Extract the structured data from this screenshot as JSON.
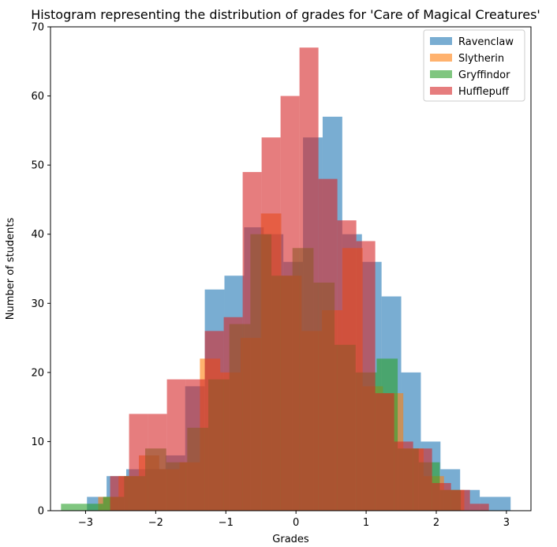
{
  "chart_data": {
    "type": "bar",
    "title": "Histogram representing the distribution of grades for 'Care of Magical Creatures'",
    "xlabel": "Grades",
    "ylabel": "Number of students",
    "xlim": [
      -3.5,
      3.35
    ],
    "ylim": [
      0,
      70
    ],
    "xticks": [
      -3,
      -2,
      -1,
      0,
      1,
      2,
      3
    ],
    "xtick_labels": [
      "−3",
      "−2",
      "−1",
      "0",
      "1",
      "2",
      "3"
    ],
    "yticks": [
      0,
      10,
      20,
      30,
      40,
      50,
      60,
      70
    ],
    "ytick_labels": [
      "0",
      "10",
      "20",
      "30",
      "40",
      "50",
      "60",
      "70"
    ],
    "grid": false,
    "legend_position": "top-right",
    "series": [
      {
        "name": "Ravenclaw",
        "color": "#1f77b4",
        "opacity": 0.6,
        "bin_edges": [
          -2.98,
          -2.7,
          -2.42,
          -2.14,
          -1.86,
          -1.58,
          -1.3,
          -1.02,
          -0.74,
          -0.46,
          -0.18,
          0.1,
          0.38,
          0.66,
          0.94,
          1.22,
          1.5,
          1.78,
          2.06,
          2.34,
          2.62,
          3.06
        ],
        "counts": [
          2,
          5,
          6,
          6,
          8,
          18,
          32,
          34,
          41,
          40,
          36,
          54,
          57,
          40,
          36,
          31,
          20,
          10,
          6,
          3,
          2
        ]
      },
      {
        "name": "Slytherin",
        "color": "#ff7f0e",
        "opacity": 0.6,
        "bin_edges": [
          -2.82,
          -2.53,
          -2.24,
          -1.95,
          -1.66,
          -1.37,
          -1.08,
          -0.79,
          -0.5,
          -0.21,
          0.08,
          0.37,
          0.66,
          0.95,
          1.24,
          1.53,
          1.82,
          2.11,
          2.4
        ],
        "counts": [
          2,
          5,
          8,
          6,
          7,
          22,
          20,
          25,
          43,
          34,
          26,
          29,
          38,
          18,
          17,
          9,
          5,
          3
        ]
      },
      {
        "name": "Gryffindor",
        "color": "#2ca02c",
        "opacity": 0.6,
        "bin_edges": [
          -3.35,
          -3.05,
          -2.75,
          -2.45,
          -2.15,
          -1.85,
          -1.55,
          -1.25,
          -0.95,
          -0.65,
          -0.35,
          -0.05,
          0.25,
          0.55,
          0.85,
          1.15,
          1.45,
          1.75,
          2.05,
          2.35
        ],
        "counts": [
          1,
          1,
          2,
          5,
          9,
          7,
          12,
          19,
          27,
          40,
          34,
          38,
          33,
          24,
          20,
          22,
          9,
          7,
          3
        ]
      },
      {
        "name": "Hufflepuff",
        "color": "#d62728",
        "opacity": 0.6,
        "bin_edges": [
          -2.65,
          -2.38,
          -2.11,
          -1.84,
          -1.57,
          -1.3,
          -1.03,
          -0.76,
          -0.49,
          -0.22,
          0.05,
          0.32,
          0.59,
          0.86,
          1.13,
          1.4,
          1.67,
          1.94,
          2.21,
          2.48,
          2.75
        ],
        "counts": [
          5,
          14,
          14,
          19,
          19,
          26,
          28,
          49,
          54,
          60,
          67,
          48,
          42,
          39,
          17,
          10,
          9,
          4,
          3,
          1
        ]
      }
    ]
  }
}
